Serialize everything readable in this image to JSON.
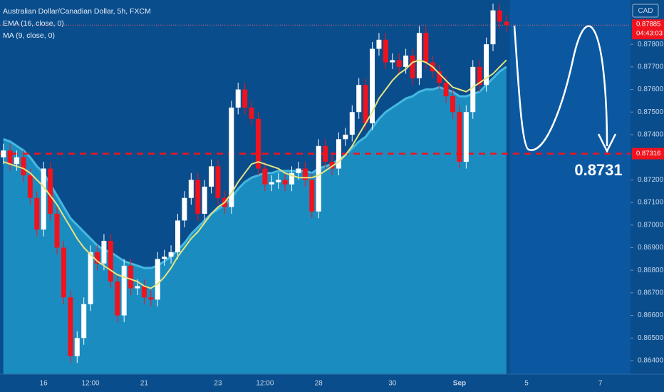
{
  "chart_data": {
    "type": "candlestick",
    "title": "Australian Dollar/Canadian Dollar, 5h, FXCM",
    "currency": "CAD",
    "categories": [
      null,
      null,
      null,
      null,
      null,
      null,
      "16",
      null,
      null,
      null,
      null,
      null,
      null,
      "12:00",
      null,
      null,
      null,
      null,
      null,
      null,
      null,
      "21",
      null,
      null,
      null,
      null,
      null,
      null,
      null,
      null,
      null,
      null,
      "23",
      null,
      null,
      null,
      null,
      null,
      null,
      "12:00",
      null,
      null,
      null,
      null,
      null,
      null,
      null,
      "28",
      null,
      null,
      null,
      null,
      null,
      null,
      null,
      null,
      null,
      null,
      "30",
      null,
      null,
      null,
      null,
      null,
      null,
      null,
      null,
      null,
      "Sep",
      null,
      null,
      null,
      null,
      null,
      null,
      null,
      null,
      null,
      "5",
      null,
      null,
      null,
      null,
      null,
      null,
      null,
      null,
      null,
      null,
      "7",
      null,
      null,
      null,
      null
    ],
    "open": [
      0.873,
      0.8733,
      0.8727,
      0.873,
      0.8722,
      0.8712,
      0.8698,
      0.8725,
      0.8705,
      0.869,
      0.8668,
      0.8642,
      0.865,
      0.8665,
      0.8688,
      0.8683,
      0.8693,
      0.8675,
      0.866,
      0.8682,
      0.8672,
      0.8673,
      0.8668,
      0.8667,
      0.8685,
      0.8686,
      0.8688,
      0.8702,
      0.8712,
      0.872,
      0.8705,
      0.8717,
      0.8726,
      0.8712,
      0.8708,
      0.8752,
      0.876,
      0.8752,
      0.8747,
      0.8725,
      0.8718,
      0.8719,
      0.872,
      0.8718,
      0.8723,
      0.8725,
      0.872,
      0.8706,
      0.8735,
      0.8728,
      0.8725,
      0.8738,
      0.874,
      0.875,
      0.8762,
      0.8745,
      0.8778,
      0.8782,
      0.8772,
      0.8773,
      0.877,
      0.8775,
      0.8765,
      0.8785,
      0.8772,
      0.8768,
      0.8763,
      0.8757,
      0.875,
      0.8728,
      0.875,
      0.877,
      0.8762,
      0.878,
      0.8795,
      0.879,
      null,
      null,
      null,
      null,
      null,
      null,
      null,
      null,
      null,
      null,
      null,
      null,
      null,
      null,
      null,
      null,
      null,
      null
    ],
    "high": [
      0.8736,
      0.8736,
      0.8733,
      0.8733,
      0.8725,
      0.8715,
      0.8728,
      0.8728,
      0.8708,
      0.8693,
      0.8671,
      0.8653,
      0.8668,
      0.8691,
      0.8691,
      0.8696,
      0.8696,
      0.8678,
      0.8685,
      0.8685,
      0.8676,
      0.8676,
      0.8671,
      0.8688,
      0.8689,
      0.8691,
      0.8705,
      0.8715,
      0.8723,
      0.8723,
      0.872,
      0.8729,
      0.8729,
      0.8715,
      0.8755,
      0.8763,
      0.8763,
      0.8755,
      0.875,
      0.8728,
      0.8722,
      0.8723,
      0.8723,
      0.8726,
      0.8728,
      0.8728,
      0.8723,
      0.8738,
      0.8738,
      0.8731,
      0.8741,
      0.8743,
      0.8753,
      0.8765,
      0.8765,
      0.8781,
      0.8785,
      0.8785,
      0.8776,
      0.8776,
      0.8778,
      0.8778,
      0.8788,
      0.8788,
      0.8775,
      0.8771,
      0.8766,
      0.876,
      0.8753,
      0.8753,
      0.8773,
      0.8773,
      0.8783,
      0.8798,
      0.8798,
      0.8793,
      null,
      null,
      null,
      null,
      null,
      null,
      null,
      null,
      null,
      null,
      null,
      null,
      null,
      null,
      null,
      null,
      null,
      null
    ],
    "low": [
      0.8727,
      0.8724,
      0.8724,
      0.8719,
      0.8709,
      0.8695,
      0.8695,
      0.8702,
      0.8687,
      0.8665,
      0.8639,
      0.8639,
      0.8647,
      0.8662,
      0.868,
      0.868,
      0.8672,
      0.8657,
      0.8657,
      0.8669,
      0.8669,
      0.8665,
      0.8664,
      0.8664,
      0.8682,
      0.8683,
      0.8685,
      0.8699,
      0.8709,
      0.8702,
      0.8702,
      0.8714,
      0.8709,
      0.8705,
      0.8705,
      0.8749,
      0.8749,
      0.8744,
      0.8722,
      0.8715,
      0.8715,
      0.8716,
      0.8715,
      0.8715,
      0.872,
      0.8717,
      0.8703,
      0.8703,
      0.8725,
      0.8722,
      0.8722,
      0.8735,
      0.8737,
      0.8747,
      0.8742,
      0.8742,
      0.8775,
      0.8769,
      0.8769,
      0.8767,
      0.8767,
      0.8762,
      0.8762,
      0.8769,
      0.8765,
      0.876,
      0.8754,
      0.8747,
      0.8725,
      0.8725,
      0.8747,
      0.8759,
      0.8759,
      0.8777,
      0.8787,
      0.87855,
      null,
      null,
      null,
      null,
      null,
      null,
      null,
      null,
      null,
      null,
      null,
      null,
      null,
      null,
      null,
      null,
      null,
      null
    ],
    "close": [
      0.8733,
      0.8727,
      0.873,
      0.8722,
      0.8712,
      0.8698,
      0.8725,
      0.8705,
      0.869,
      0.8668,
      0.8642,
      0.865,
      0.8665,
      0.8688,
      0.8683,
      0.8693,
      0.8675,
      0.866,
      0.8682,
      0.8672,
      0.8673,
      0.8668,
      0.8667,
      0.8685,
      0.8686,
      0.8688,
      0.8702,
      0.8712,
      0.872,
      0.8705,
      0.8717,
      0.8726,
      0.8712,
      0.8708,
      0.8752,
      0.876,
      0.8752,
      0.8747,
      0.8725,
      0.8718,
      0.8719,
      0.872,
      0.8718,
      0.8723,
      0.8725,
      0.872,
      0.8706,
      0.8735,
      0.8728,
      0.8725,
      0.8738,
      0.874,
      0.875,
      0.8762,
      0.8745,
      0.8778,
      0.8782,
      0.8772,
      0.8773,
      0.877,
      0.8775,
      0.8765,
      0.8785,
      0.8772,
      0.8768,
      0.8763,
      0.8757,
      0.875,
      0.8728,
      0.875,
      0.877,
      0.8762,
      0.878,
      0.8795,
      0.879,
      0.87885,
      null,
      null,
      null,
      null,
      null,
      null,
      null,
      null,
      null,
      null,
      null,
      null,
      null,
      null,
      null,
      null,
      null,
      null
    ],
    "up_color": "#ffffff",
    "down_color": "#f0131e",
    "indicators": [
      {
        "name": "EMA (16, close, 0)",
        "color": "#45b9e0",
        "fill": "#1b8cc0",
        "values": [
          0.8738,
          0.8737,
          0.8735,
          0.8733,
          0.873,
          0.8726,
          0.8723,
          0.8718,
          0.8713,
          0.8708,
          0.8703,
          0.87,
          0.8697,
          0.8694,
          0.8691,
          0.8689,
          0.8688,
          0.8686,
          0.8684,
          0.8683,
          0.8682,
          0.8681,
          0.8681,
          0.8682,
          0.8684,
          0.8686,
          0.8689,
          0.8692,
          0.8696,
          0.8699,
          0.8702,
          0.8705,
          0.8707,
          0.8709,
          0.8712,
          0.8716,
          0.8719,
          0.8721,
          0.8722,
          0.8723,
          0.8723,
          0.8724,
          0.8724,
          0.8724,
          0.8724,
          0.8724,
          0.8723,
          0.8725,
          0.8726,
          0.8727,
          0.8729,
          0.8731,
          0.8734,
          0.8737,
          0.8739,
          0.8743,
          0.8747,
          0.875,
          0.8752,
          0.8754,
          0.8756,
          0.8757,
          0.8759,
          0.876,
          0.876,
          0.8761,
          0.876,
          0.8759,
          0.8757,
          0.8757,
          0.8758,
          0.8759,
          0.8762,
          0.8765,
          0.8768,
          0.877,
          null,
          null,
          null,
          null,
          null,
          null,
          null,
          null,
          null,
          null,
          null,
          null,
          null,
          null,
          null,
          null,
          null,
          null
        ]
      },
      {
        "name": "MA (9, close, 0)",
        "color": "#e6e47e",
        "values": [
          0.8728,
          0.8727,
          0.8726,
          0.8725,
          0.8723,
          0.872,
          0.8717,
          0.8713,
          0.8709,
          0.8704,
          0.8699,
          0.8694,
          0.869,
          0.8687,
          0.8684,
          0.8682,
          0.868,
          0.8678,
          0.8677,
          0.8676,
          0.8675,
          0.8673,
          0.8672,
          0.8674,
          0.8677,
          0.8681,
          0.8686,
          0.869,
          0.8694,
          0.8697,
          0.8701,
          0.8705,
          0.8708,
          0.871,
          0.8714,
          0.8719,
          0.8723,
          0.8727,
          0.8728,
          0.8727,
          0.8726,
          0.8725,
          0.8723,
          0.8722,
          0.8721,
          0.8721,
          0.8721,
          0.8722,
          0.8724,
          0.8726,
          0.8728,
          0.8731,
          0.8735,
          0.874,
          0.8745,
          0.875,
          0.8756,
          0.876,
          0.8764,
          0.8767,
          0.8769,
          0.8772,
          0.8773,
          0.8772,
          0.877,
          0.8767,
          0.8764,
          0.8761,
          0.876,
          0.8759,
          0.8761,
          0.8763,
          0.8765,
          0.8767,
          0.877,
          0.8773,
          null,
          null,
          null,
          null,
          null,
          null,
          null,
          null,
          null,
          null,
          null,
          null,
          null,
          null,
          null,
          null,
          null,
          null
        ]
      }
    ],
    "ylim": [
      0.8634,
      0.87996
    ],
    "yticks": [
      {
        "value": 0.864,
        "label": "0.86400"
      },
      {
        "value": 0.865,
        "label": "0.86500"
      },
      {
        "value": 0.866,
        "label": "0.86600"
      },
      {
        "value": 0.867,
        "label": "0.86700"
      },
      {
        "value": 0.868,
        "label": "0.86800"
      },
      {
        "value": 0.869,
        "label": "0.86900"
      },
      {
        "value": 0.87,
        "label": "0.87000"
      },
      {
        "value": 0.871,
        "label": "0.87100"
      },
      {
        "value": 0.872,
        "label": "0.87200"
      },
      {
        "value": 0.874,
        "label": "0.87400"
      },
      {
        "value": 0.875,
        "label": "0.87500"
      },
      {
        "value": 0.876,
        "label": "0.87600"
      },
      {
        "value": 0.877,
        "label": "0.87700"
      },
      {
        "value": 0.878,
        "label": "0.87800"
      }
    ],
    "last_price": 0.87885,
    "countdown": "04:43:03",
    "level": 0.87316,
    "level_color": "#f0131e",
    "annotation": "0.8731",
    "grid": false
  }
}
